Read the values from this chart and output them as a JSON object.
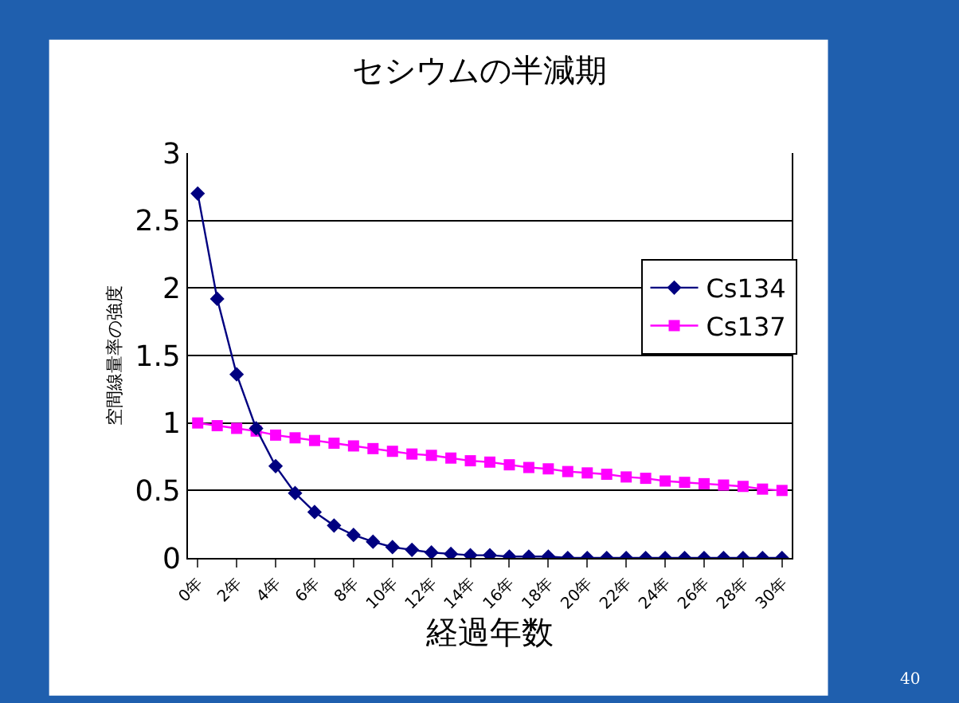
{
  "chart_data": {
    "type": "line",
    "title": "セシウムの半減期",
    "xlabel": "経過年数",
    "ylabel": "空間線量率の強度",
    "categories": [
      "0年",
      null,
      "2年",
      null,
      "4年",
      null,
      "6年",
      null,
      "8年",
      null,
      "10年",
      null,
      "12年",
      null,
      "14年",
      null,
      "16年",
      null,
      "18年",
      null,
      "20年",
      null,
      "22年",
      null,
      "24年",
      null,
      "26年",
      null,
      "28年",
      null,
      "30年"
    ],
    "series": [
      {
        "name": "Cs134",
        "color": "#000080",
        "marker": "diamond",
        "values": [
          2.7,
          1.92,
          1.36,
          0.96,
          0.68,
          0.48,
          0.34,
          0.24,
          0.17,
          0.12,
          0.08,
          0.06,
          0.04,
          0.03,
          0.02,
          0.02,
          0.01,
          0.01,
          0.01,
          0,
          0,
          0,
          0,
          0,
          0,
          0,
          0,
          0,
          0,
          0,
          0
        ]
      },
      {
        "name": "Cs137",
        "color": "#ff00ff",
        "marker": "square",
        "values": [
          1,
          0.98,
          0.96,
          0.94,
          0.91,
          0.89,
          0.87,
          0.85,
          0.83,
          0.81,
          0.79,
          0.77,
          0.76,
          0.74,
          0.72,
          0.71,
          0.69,
          0.67,
          0.66,
          0.64,
          0.63,
          0.62,
          0.6,
          0.59,
          0.57,
          0.56,
          0.55,
          0.54,
          0.53,
          0.51,
          0.5
        ]
      }
    ],
    "ylim": [
      0,
      3
    ],
    "yticks": [
      0,
      0.5,
      1,
      1.5,
      2,
      2.5,
      3
    ],
    "grid": "y",
    "legend": "right",
    "line_style": "solid",
    "annotations": [
      "40"
    ]
  }
}
